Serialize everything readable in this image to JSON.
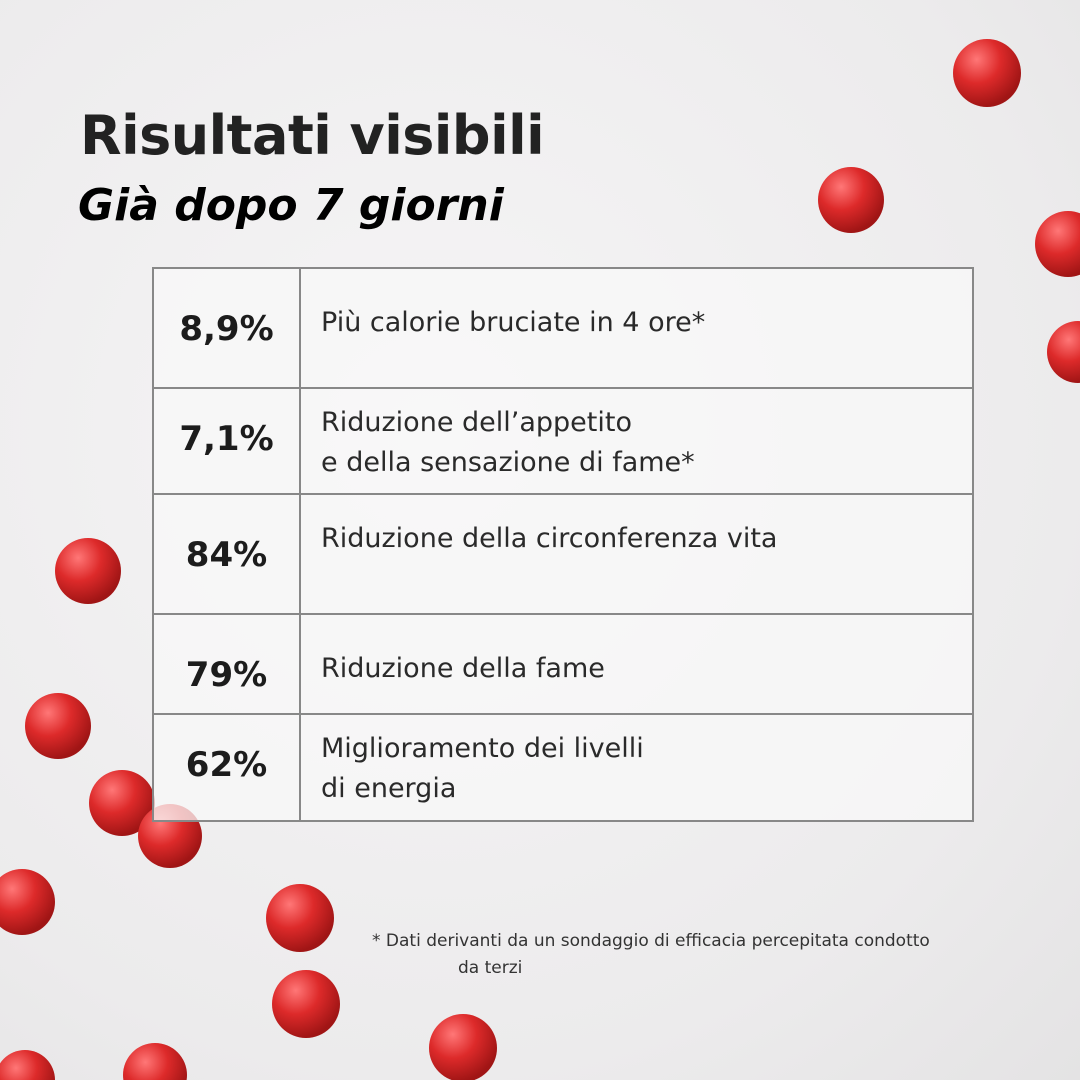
{
  "header": {
    "title": "Risultati visibili",
    "subtitle": "Già dopo 7 giorni"
  },
  "table": {
    "rows": [
      {
        "value": "8,9%",
        "lines": [
          "Più calorie bruciate in 4 ore*"
        ]
      },
      {
        "value": "7,1%",
        "lines": [
          "Riduzione dell’appetito",
          "e della sensazione di fame*"
        ]
      },
      {
        "value": "84%",
        "lines": [
          "Riduzione della circonferenza vita"
        ]
      },
      {
        "value": "79%",
        "lines": [
          "Riduzione della fame"
        ]
      },
      {
        "value": "62%",
        "lines": [
          "Miglioramento dei livelli",
          "di energia"
        ]
      }
    ]
  },
  "footnote": {
    "lines": [
      "* Dati derivanti da un sondaggio di efficacia percepitata condotto",
      "da terzi"
    ]
  }
}
